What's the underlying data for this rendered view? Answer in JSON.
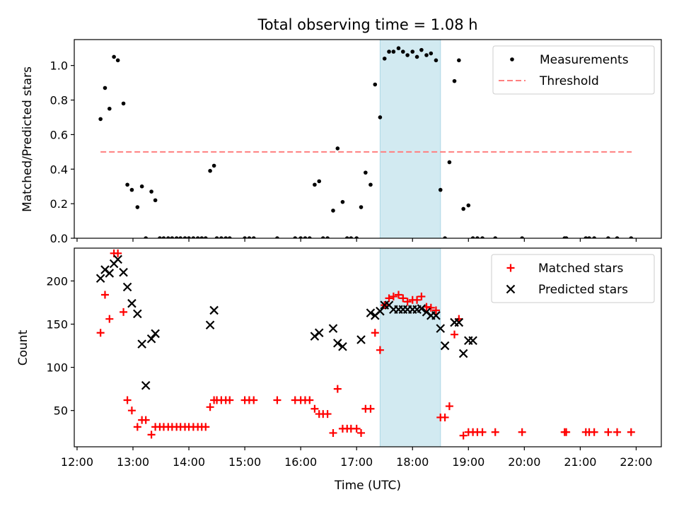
{
  "title": "Total observing time = 1.08 h",
  "colors": {
    "threshold": "#ff7f7f",
    "shade": "#add8e6",
    "measurements": "#000000",
    "matched": "#ff0000",
    "predicted": "#000000",
    "legend_border": "#cccccc"
  },
  "chart_data": [
    {
      "type": "scatter",
      "ylabel": "Matched/Predicted stars",
      "ylim": [
        0,
        1.15
      ],
      "xlim": [
        11.95,
        22.45
      ],
      "yticks": [
        0.0,
        0.2,
        0.4,
        0.6,
        0.8,
        1.0
      ],
      "ytick_labels": [
        "0.0",
        "0.2",
        "0.4",
        "0.6",
        "0.8",
        "1.0"
      ],
      "legend_position": "top-right",
      "shaded_interval": [
        17.42,
        18.5
      ],
      "threshold_line": {
        "name": "Threshold",
        "value": 0.5,
        "x_range": [
          12.42,
          21.92
        ]
      },
      "series": [
        {
          "name": "Measurements",
          "marker": "dot",
          "x": [
            12.42,
            12.5,
            12.58,
            12.66,
            12.73,
            12.83,
            12.9,
            12.98,
            13.08,
            13.16,
            13.23,
            13.33,
            13.4,
            13.48,
            13.55,
            13.63,
            13.7,
            13.78,
            13.85,
            13.93,
            14.0,
            14.08,
            14.16,
            14.23,
            14.3,
            14.38,
            14.45,
            14.5,
            14.58,
            14.66,
            14.73,
            15.0,
            15.08,
            15.16,
            15.58,
            15.9,
            16.0,
            16.08,
            16.16,
            16.25,
            16.33,
            16.4,
            16.48,
            16.58,
            16.66,
            16.75,
            16.83,
            16.9,
            17.0,
            17.08,
            17.16,
            17.25,
            17.33,
            17.42,
            17.5,
            17.58,
            17.66,
            17.75,
            17.83,
            17.91,
            18.0,
            18.08,
            18.16,
            18.25,
            18.33,
            18.42,
            18.5,
            18.58,
            18.66,
            18.75,
            18.83,
            18.91,
            19.0,
            19.08,
            19.16,
            19.25,
            19.48,
            19.96,
            20.72,
            20.75,
            21.1,
            21.16,
            21.25,
            21.5,
            21.66,
            21.91
          ],
          "y": [
            0.69,
            0.87,
            0.75,
            1.05,
            1.03,
            0.78,
            0.31,
            0.28,
            0.18,
            0.3,
            0.0,
            0.27,
            0.22,
            0.0,
            0.0,
            0.0,
            0.0,
            0.0,
            0.0,
            0.0,
            0.0,
            0.0,
            0.0,
            0.0,
            0.0,
            0.39,
            0.42,
            0.0,
            0.0,
            0.0,
            0.0,
            0.0,
            0.0,
            0.0,
            0.0,
            0.0,
            0.0,
            0.0,
            0.0,
            0.31,
            0.33,
            0.0,
            0.0,
            0.16,
            0.52,
            0.21,
            0.0,
            0.0,
            0.0,
            0.18,
            0.38,
            0.31,
            0.89,
            0.7,
            1.04,
            1.08,
            1.08,
            1.1,
            1.08,
            1.06,
            1.08,
            1.05,
            1.09,
            1.06,
            1.07,
            1.03,
            0.28,
            0.0,
            0.44,
            0.91,
            1.03,
            0.17,
            0.19,
            0.0,
            0.0,
            0.0,
            0.0,
            0.0,
            0.0,
            0.0,
            0.0,
            0.0,
            0.0,
            0.0,
            0.0,
            0.0
          ]
        }
      ]
    },
    {
      "type": "scatter",
      "xlabel": "Time (UTC)",
      "ylabel": "Count",
      "ylim": [
        8,
        238
      ],
      "xlim": [
        11.95,
        22.45
      ],
      "yticks": [
        50,
        100,
        150,
        200
      ],
      "ytick_labels": [
        "50",
        "100",
        "150",
        "200"
      ],
      "xticks": [
        12,
        13,
        14,
        15,
        16,
        17,
        18,
        19,
        20,
        21,
        22
      ],
      "xtick_labels": [
        "12:00",
        "13:00",
        "14:00",
        "15:00",
        "16:00",
        "17:00",
        "18:00",
        "19:00",
        "20:00",
        "21:00",
        "22:00"
      ],
      "legend_position": "top-right",
      "shaded_interval": [
        17.42,
        18.5
      ],
      "series": [
        {
          "name": "Matched stars",
          "marker": "plus",
          "x": [
            12.42,
            12.5,
            12.58,
            12.66,
            12.73,
            12.83,
            12.9,
            12.98,
            13.08,
            13.16,
            13.23,
            13.33,
            13.4,
            13.48,
            13.55,
            13.63,
            13.7,
            13.78,
            13.85,
            13.93,
            14.0,
            14.08,
            14.16,
            14.23,
            14.3,
            14.38,
            14.45,
            14.5,
            14.58,
            14.66,
            14.73,
            15.0,
            15.08,
            15.16,
            15.58,
            15.9,
            16.0,
            16.08,
            16.16,
            16.25,
            16.33,
            16.4,
            16.48,
            16.58,
            16.66,
            16.75,
            16.83,
            16.9,
            17.0,
            17.08,
            17.16,
            17.25,
            17.33,
            17.42,
            17.5,
            17.58,
            17.66,
            17.75,
            17.83,
            17.91,
            18.0,
            18.08,
            18.16,
            18.25,
            18.33,
            18.42,
            18.5,
            18.58,
            18.66,
            18.75,
            18.83,
            18.91,
            19.0,
            19.08,
            19.16,
            19.25,
            19.48,
            19.96,
            20.72,
            20.75,
            21.1,
            21.16,
            21.25,
            21.5,
            21.66,
            21.91
          ],
          "y": [
            140,
            184,
            156,
            232,
            232,
            164,
            62,
            50,
            31,
            39,
            39,
            22,
            31,
            31,
            31,
            31,
            31,
            31,
            31,
            31,
            31,
            31,
            31,
            31,
            31,
            54,
            62,
            62,
            62,
            62,
            62,
            62,
            62,
            62,
            62,
            62,
            62,
            62,
            62,
            52,
            46,
            46,
            46,
            24,
            75,
            29,
            29,
            29,
            29,
            24,
            52,
            52,
            140,
            120,
            172,
            180,
            182,
            184,
            180,
            176,
            178,
            178,
            182,
            170,
            169,
            166,
            42,
            42,
            55,
            138,
            156,
            21,
            25,
            25,
            25,
            25,
            25,
            25,
            25,
            25,
            25,
            25,
            25,
            25,
            25,
            25
          ]
        },
        {
          "name": "Predicted stars",
          "marker": "x",
          "x": [
            12.42,
            12.5,
            12.58,
            12.66,
            12.73,
            12.83,
            12.9,
            12.98,
            13.08,
            13.16,
            13.23,
            13.33,
            13.4,
            14.38,
            14.45,
            16.25,
            16.33,
            16.58,
            16.66,
            16.75,
            17.08,
            17.25,
            17.33,
            17.42,
            17.5,
            17.58,
            17.66,
            17.75,
            17.83,
            17.91,
            18.0,
            18.08,
            18.16,
            18.25,
            18.33,
            18.42,
            18.5,
            18.58,
            18.75,
            18.83,
            18.91,
            19.0,
            19.08
          ],
          "y": [
            203,
            213,
            209,
            220,
            225,
            210,
            193,
            174,
            162,
            127,
            79,
            133,
            139,
            149,
            166,
            136,
            140,
            145,
            128,
            124,
            132,
            163,
            160,
            165,
            172,
            172,
            167,
            167,
            167,
            167,
            167,
            167,
            168,
            164,
            160,
            160,
            145,
            125,
            152,
            152,
            116,
            131,
            131
          ]
        }
      ]
    }
  ]
}
